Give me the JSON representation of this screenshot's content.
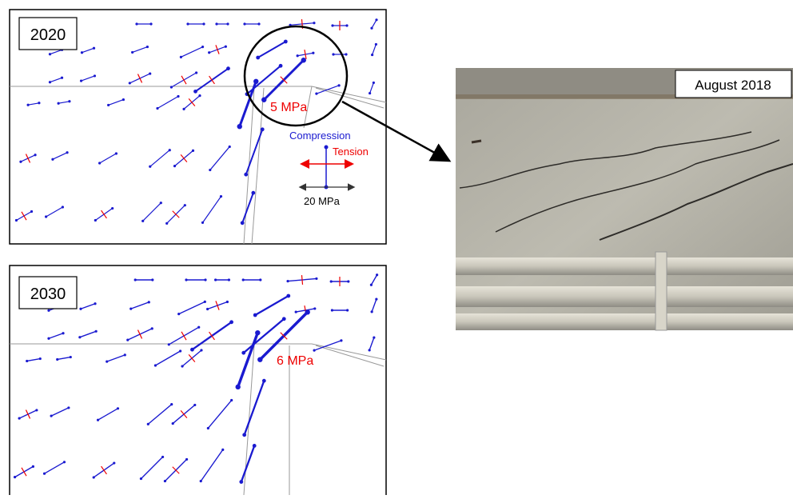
{
  "panels": [
    {
      "label": "2020",
      "annotation": "5 MPa"
    },
    {
      "label": "2030",
      "annotation": "6 MPa"
    }
  ],
  "legend": {
    "compression": "Compression",
    "tension": "Tension",
    "scale": "20 MPa"
  },
  "photo": {
    "caption": "August 2018"
  }
}
